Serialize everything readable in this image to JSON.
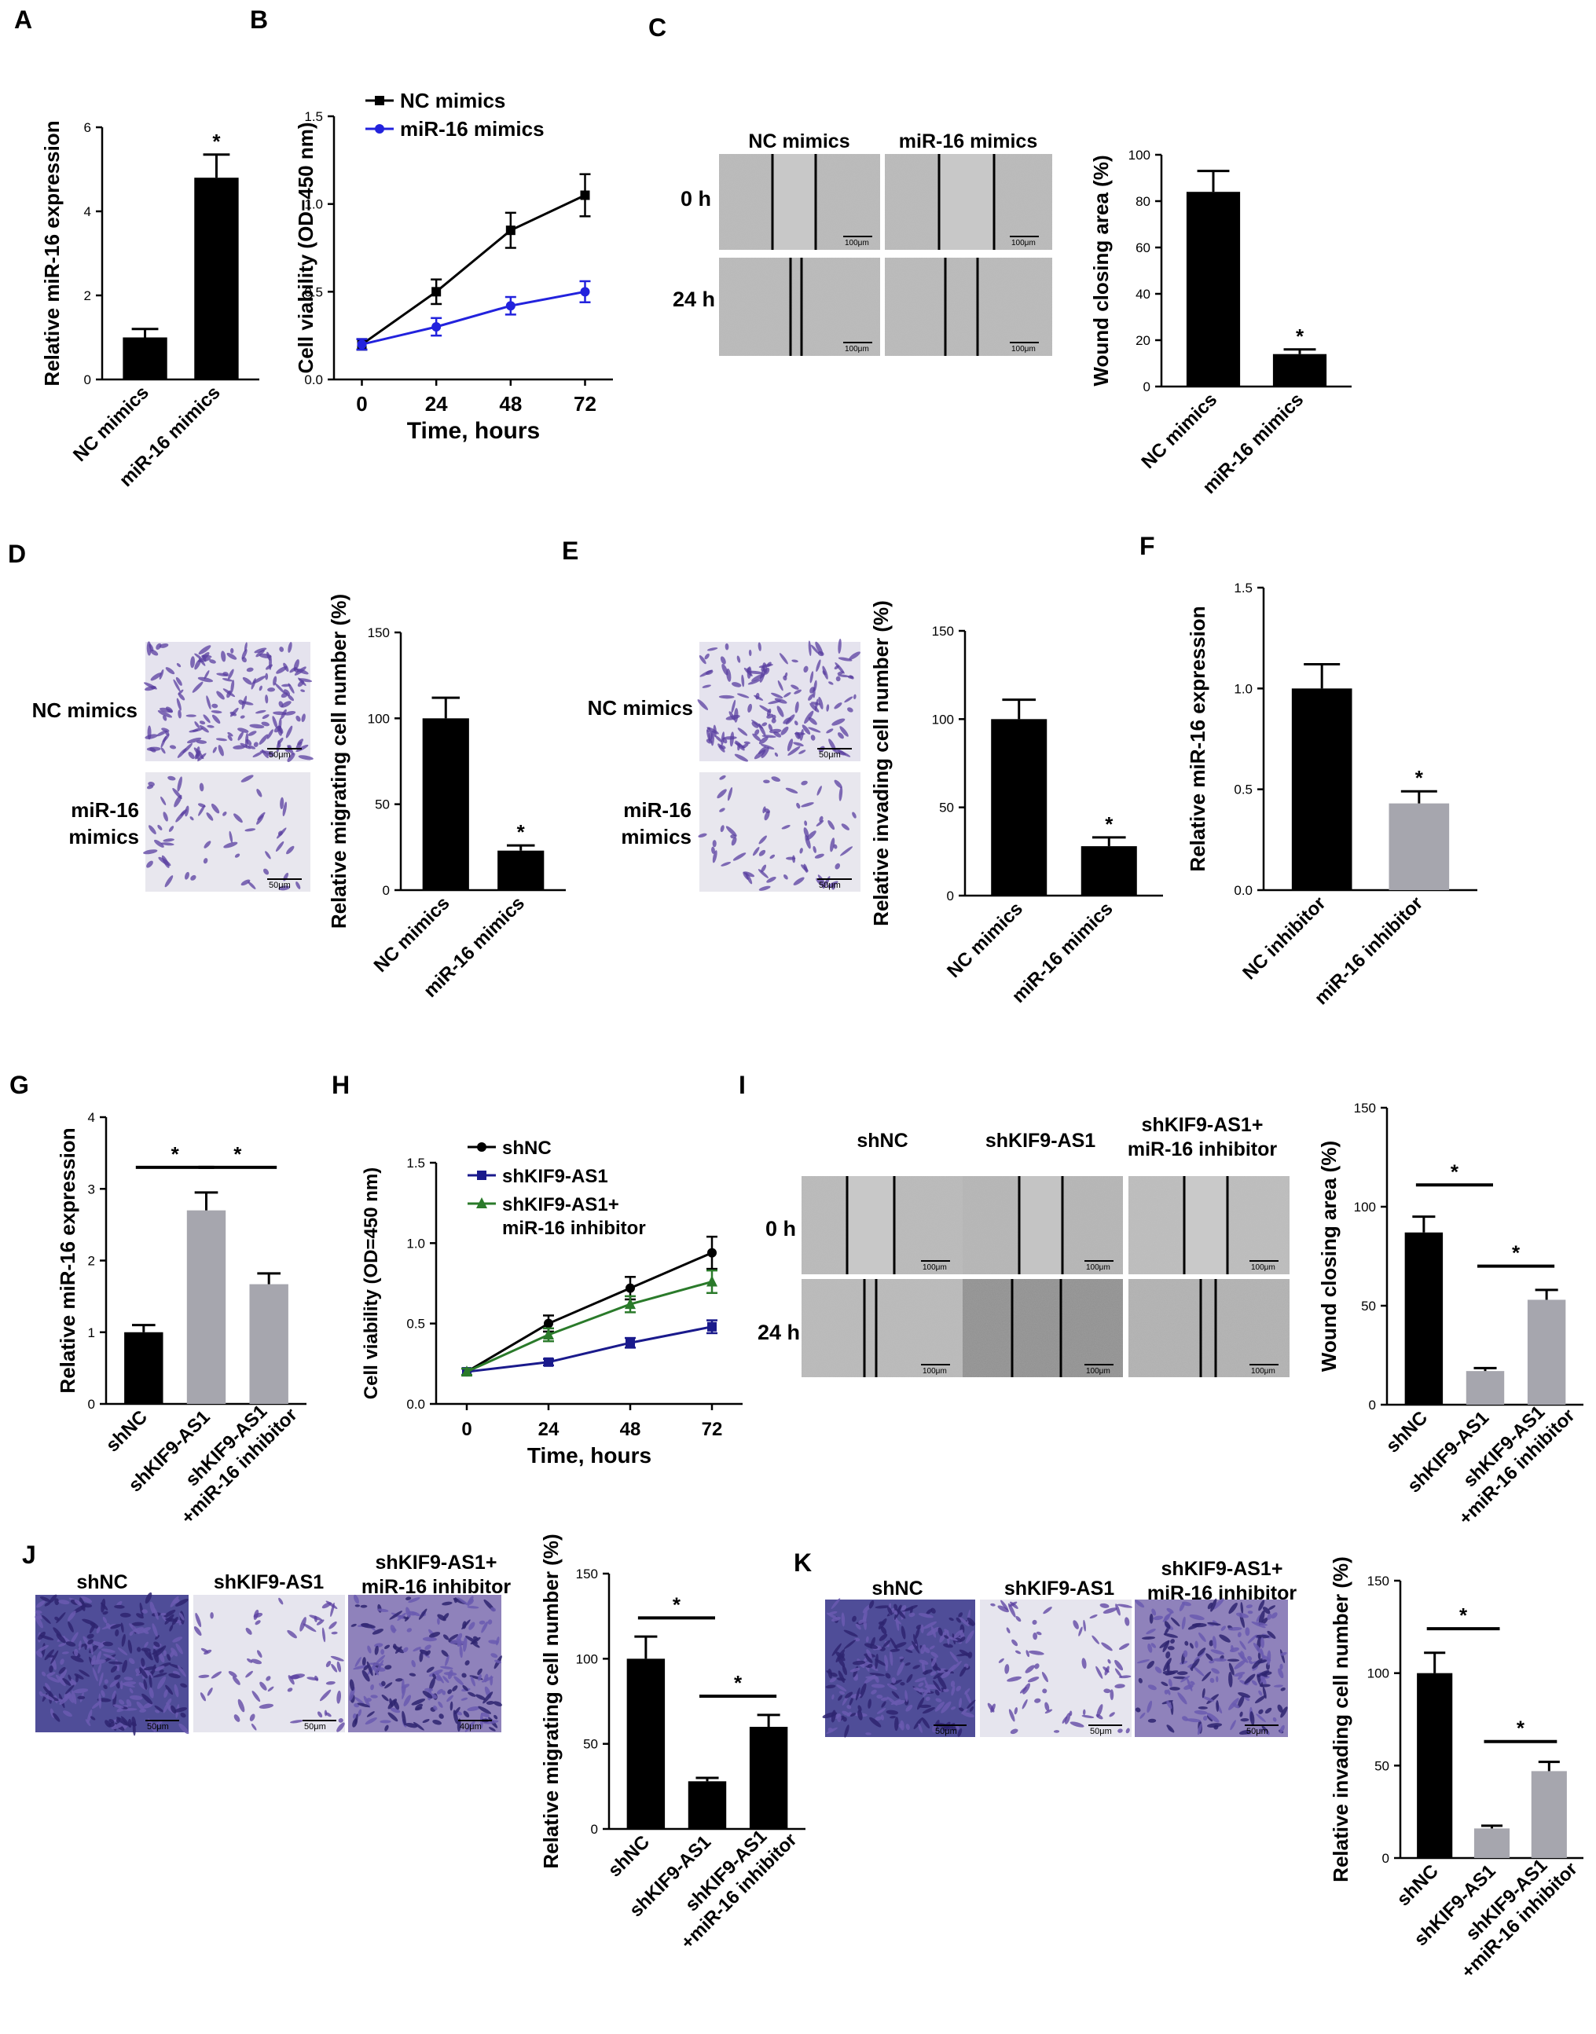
{
  "panel_labels": [
    "A",
    "B",
    "C",
    "D",
    "E",
    "F",
    "G",
    "H",
    "I",
    "J",
    "K"
  ],
  "chart_data": [
    {
      "id": "A",
      "type": "bar",
      "categories": [
        "NC mimics",
        "miR-16 mimics"
      ],
      "values": [
        1.0,
        4.8
      ],
      "errors": [
        0.2,
        0.55
      ],
      "colors": [
        "#000000",
        "#000000"
      ],
      "ylabel": "Relative miR-16 expression",
      "ylim": [
        0,
        6
      ],
      "yticks": [
        "0",
        "2",
        "4",
        "6"
      ],
      "annotations": [
        {
          "text": "*",
          "category": 1
        }
      ],
      "brackets": []
    },
    {
      "id": "B",
      "type": "line",
      "x": [
        0,
        24,
        48,
        72
      ],
      "xticks": [
        "0",
        "24",
        "48",
        "72"
      ],
      "xlabel": "Time, hours",
      "ylabel": "Cell viability (OD=450 nm)",
      "ylim": [
        0,
        1.5
      ],
      "yticks": [
        "0.0",
        "0.5",
        "1.0",
        "1.5"
      ],
      "series": [
        {
          "name": "NC mimics",
          "values": [
            0.2,
            0.5,
            0.85,
            1.05
          ],
          "errors": [
            0.03,
            0.07,
            0.1,
            0.12
          ],
          "color": "#000000",
          "marker": "square"
        },
        {
          "name": "miR-16 mimics",
          "values": [
            0.2,
            0.3,
            0.42,
            0.5
          ],
          "errors": [
            0.03,
            0.05,
            0.05,
            0.06
          ],
          "color": "#2222dd",
          "marker": "circle"
        }
      ],
      "legend": "top-left"
    },
    {
      "id": "C",
      "type": "bar",
      "categories": [
        "NC mimics",
        "miR-16 mimics"
      ],
      "values": [
        84,
        14
      ],
      "errors": [
        9,
        2
      ],
      "colors": [
        "#000000",
        "#000000"
      ],
      "ylabel": "Wound closing area (%)",
      "ylim": [
        0,
        100
      ],
      "yticks": [
        "0",
        "20",
        "40",
        "60",
        "80",
        "100"
      ],
      "annotations": [
        {
          "text": "*",
          "category": 1
        }
      ],
      "brackets": []
    },
    {
      "id": "D",
      "type": "bar",
      "categories": [
        "NC mimics",
        "miR-16 mimics"
      ],
      "values": [
        100,
        23
      ],
      "errors": [
        12,
        3
      ],
      "colors": [
        "#000000",
        "#000000"
      ],
      "ylabel": "Relative migrating cell number (%)",
      "ylim": [
        0,
        150
      ],
      "yticks": [
        "0",
        "50",
        "100",
        "150"
      ],
      "annotations": [
        {
          "text": "*",
          "category": 1
        }
      ],
      "brackets": []
    },
    {
      "id": "E",
      "type": "bar",
      "categories": [
        "NC mimics",
        "miR-16 mimics"
      ],
      "values": [
        100,
        28
      ],
      "errors": [
        11,
        5
      ],
      "colors": [
        "#000000",
        "#000000"
      ],
      "ylabel": "Relative invading cell number (%)",
      "ylim": [
        0,
        150
      ],
      "yticks": [
        "0",
        "50",
        "100",
        "150"
      ],
      "annotations": [
        {
          "text": "*",
          "category": 1
        }
      ],
      "brackets": []
    },
    {
      "id": "F",
      "type": "bar",
      "categories": [
        "NC inhibitor",
        "miR-16 inhibitor"
      ],
      "values": [
        1.0,
        0.43
      ],
      "errors": [
        0.12,
        0.06
      ],
      "colors": [
        "#000000",
        "#a6a6ae"
      ],
      "ylabel": "Relative miR-16 expression",
      "ylim": [
        0,
        1.5
      ],
      "yticks": [
        "0.0",
        "0.5",
        "1.0",
        "1.5"
      ],
      "annotations": [
        {
          "text": "*",
          "category": 1
        }
      ],
      "brackets": []
    },
    {
      "id": "G",
      "type": "bar",
      "categories": [
        "shNC",
        "shKIF9-AS1",
        "shKIF9-AS1 +miR-16 inhibitor"
      ],
      "values": [
        1.0,
        2.7,
        1.67
      ],
      "errors": [
        0.1,
        0.25,
        0.15
      ],
      "colors": [
        "#000000",
        "#a6a6ae",
        "#a6a6ae"
      ],
      "ylabel": "Relative miR-16 expression",
      "ylim": [
        0,
        4
      ],
      "yticks": [
        "0",
        "1",
        "2",
        "3",
        "4"
      ],
      "annotations": [],
      "brackets": [
        {
          "from": 0,
          "to": 1,
          "text": "*",
          "level": 3.3
        },
        {
          "from": 1,
          "to": 2,
          "text": "*",
          "level": 3.3
        }
      ]
    },
    {
      "id": "H",
      "type": "line",
      "x": [
        0,
        24,
        48,
        72
      ],
      "xticks": [
        "0",
        "24",
        "48",
        "72"
      ],
      "xlabel": "Time, hours",
      "ylabel": "Cell viability (OD=450 nm)",
      "ylim": [
        0,
        1.5
      ],
      "yticks": [
        "0.0",
        "0.5",
        "1.0",
        "1.5"
      ],
      "series": [
        {
          "name": "shNC",
          "values": [
            0.2,
            0.5,
            0.72,
            0.94
          ],
          "errors": [
            0.02,
            0.05,
            0.07,
            0.1
          ],
          "color": "#000000",
          "marker": "circle"
        },
        {
          "name": "shKIF9-AS1",
          "values": [
            0.2,
            0.26,
            0.38,
            0.48
          ],
          "errors": [
            0.02,
            0.02,
            0.03,
            0.04
          ],
          "color": "#1a1a8c",
          "marker": "square"
        },
        {
          "name": "shKIF9-AS1+ miR-16 inhibitor",
          "values": [
            0.2,
            0.43,
            0.62,
            0.76
          ],
          "errors": [
            0.02,
            0.04,
            0.05,
            0.07
          ],
          "color": "#2a7a2a",
          "marker": "triangle"
        }
      ],
      "legend": "top-left"
    },
    {
      "id": "I",
      "type": "bar",
      "categories": [
        "shNC",
        "shKIF9-AS1",
        "shKIF9-AS1 +miR-16 inhibitor"
      ],
      "values": [
        87,
        17,
        53
      ],
      "errors": [
        8,
        1.5,
        5
      ],
      "colors": [
        "#000000",
        "#a6a6ae",
        "#a6a6ae"
      ],
      "ylabel": "Wound closing area (%)",
      "ylim": [
        0,
        150
      ],
      "yticks": [
        "0",
        "50",
        "100",
        "150"
      ],
      "annotations": [],
      "brackets": [
        {
          "from": 0,
          "to": 1,
          "text": "*",
          "level": 111
        },
        {
          "from": 1,
          "to": 2,
          "text": "*",
          "level": 70
        }
      ]
    },
    {
      "id": "J",
      "type": "bar",
      "categories": [
        "shNC",
        "shKIF9-AS1",
        "shKIF9-AS1 +miR-16 inhibitor"
      ],
      "values": [
        100,
        28,
        60
      ],
      "errors": [
        13,
        2,
        7
      ],
      "colors": [
        "#000000",
        "#000000",
        "#000000"
      ],
      "ylabel": "Relative migrating cell number (%)",
      "ylim": [
        0,
        150
      ],
      "yticks": [
        "0",
        "50",
        "100",
        "150"
      ],
      "annotations": [],
      "brackets": [
        {
          "from": 0,
          "to": 1,
          "text": "*",
          "level": 124
        },
        {
          "from": 1,
          "to": 2,
          "text": "*",
          "level": 78
        }
      ]
    },
    {
      "id": "K",
      "type": "bar",
      "categories": [
        "shNC",
        "shKIF9-AS1",
        "shKIF9-AS1 +miR-16 inhibitor"
      ],
      "values": [
        100,
        16,
        47
      ],
      "errors": [
        11,
        1.5,
        5
      ],
      "colors": [
        "#000000",
        "#a6a6ae",
        "#a6a6ae"
      ],
      "ylabel": "Relative invading cell number (%)",
      "ylim": [
        0,
        150
      ],
      "yticks": [
        "0",
        "50",
        "100",
        "150"
      ],
      "annotations": [],
      "brackets": [
        {
          "from": 0,
          "to": 1,
          "text": "*",
          "level": 124
        },
        {
          "from": 1,
          "to": 2,
          "text": "*",
          "level": 63
        }
      ]
    }
  ],
  "micrographs": {
    "C": {
      "columns": [
        "NC mimics",
        "miR-16 mimics"
      ],
      "rows": [
        "0 h",
        "24 h"
      ],
      "scale_bar": "100μm"
    },
    "D": {
      "rows": [
        "NC mimics",
        "miR-16 mimics"
      ],
      "scale_bar": "50μm"
    },
    "E": {
      "rows": [
        "NC mimics",
        "miR-16 mimics"
      ],
      "scale_bar": "50μm"
    },
    "I": {
      "columns": [
        "shNC",
        "shKIF9-AS1",
        "shKIF9-AS1+ miR-16 inhibitor"
      ],
      "rows": [
        "0 h",
        "24 h"
      ],
      "scale_bar": "100μm"
    },
    "J": {
      "columns": [
        "shNC",
        "shKIF9-AS1",
        "shKIF9-AS1+ miR-16 inhibitor"
      ],
      "scale_bars": [
        "50μm",
        "50μm",
        "40μm"
      ]
    },
    "K": {
      "columns": [
        "shNC",
        "shKIF9-AS1",
        "shKIF9-AS1+ miR-16 inhibitor"
      ],
      "scale_bar": "50μm"
    }
  },
  "colors": {
    "black_bar": "#000000",
    "grey_bar": "#a6a6ae",
    "stain": "#5a3fa0",
    "wound_bg": "#b9b9b9"
  }
}
